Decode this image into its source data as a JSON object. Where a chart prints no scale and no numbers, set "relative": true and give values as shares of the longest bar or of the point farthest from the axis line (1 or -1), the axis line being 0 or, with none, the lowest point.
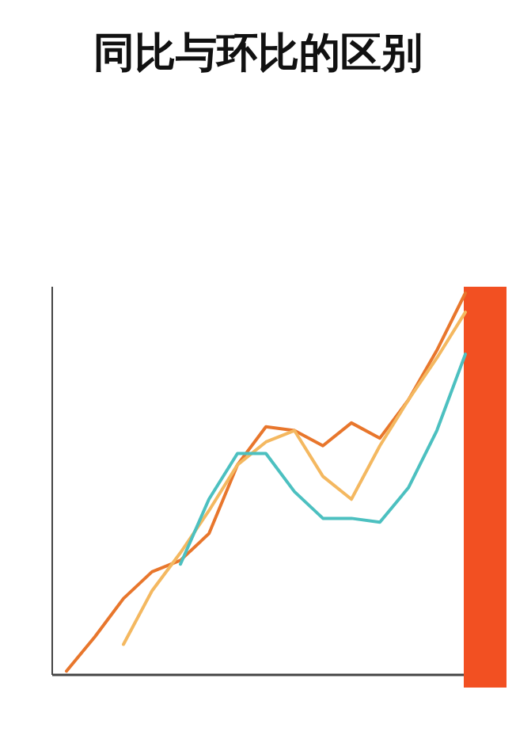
{
  "chart_data": {
    "type": "line",
    "title": "同比与环比的区别",
    "relative": true,
    "categories": [
      null,
      null,
      null,
      null,
      null,
      null,
      null,
      null,
      null,
      null,
      null,
      null,
      null,
      null,
      null
    ],
    "series": [
      {
        "color": "#e8762c",
        "values": [
          0.01,
          0.1,
          0.2,
          0.27,
          0.3,
          0.37,
          0.55,
          0.65,
          0.64,
          0.6,
          0.66,
          0.62,
          0.72,
          0.85,
          1
        ]
      },
      {
        "color": "#f4b860",
        "values": [
          null,
          null,
          0.08,
          0.22,
          0.32,
          0.43,
          0.55,
          0.61,
          0.64,
          0.52,
          0.46,
          0.6,
          0.72,
          0.83,
          0.95
        ]
      },
      {
        "color": "#4cc0c0",
        "values": [
          null,
          null,
          null,
          null,
          0.29,
          0.46,
          0.58,
          0.58,
          0.48,
          0.41,
          0.41,
          0.4,
          0.49,
          0.64,
          0.84
        ]
      }
    ]
  }
}
